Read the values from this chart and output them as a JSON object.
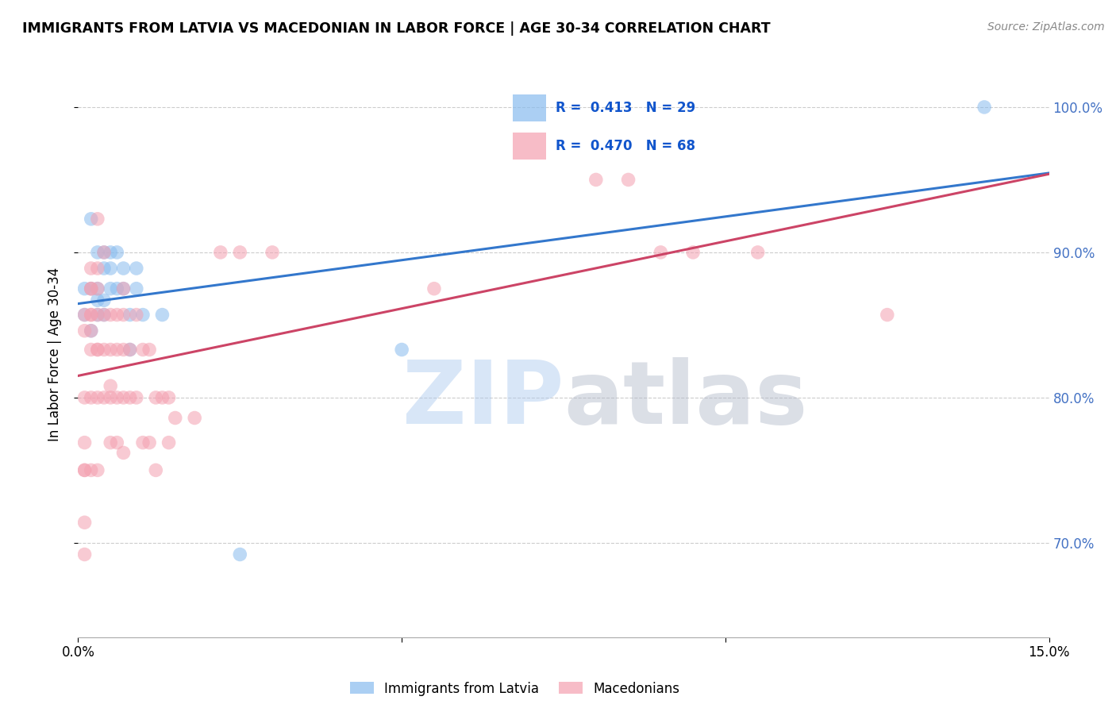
{
  "title": "IMMIGRANTS FROM LATVIA VS MACEDONIAN IN LABOR FORCE | AGE 30-34 CORRELATION CHART",
  "source": "Source: ZipAtlas.com",
  "ylabel": "In Labor Force | Age 30-34",
  "xlim": [
    0.0,
    0.15
  ],
  "ylim": [
    0.635,
    1.025
  ],
  "yticks": [
    0.7,
    0.8,
    0.9,
    1.0
  ],
  "yticklabels": [
    "70.0%",
    "80.0%",
    "90.0%",
    "100.0%"
  ],
  "right_ytick_color": "#4472c4",
  "legend_R_latvia": "0.413",
  "legend_N_latvia": "29",
  "legend_R_macedonian": "0.470",
  "legend_N_macedonian": "68",
  "latvia_color": "#88bbee",
  "macedonian_color": "#f4a0b0",
  "trend_latvia_color": "#3377cc",
  "trend_macedonian_color": "#cc4466",
  "latvia_x": [
    0.001,
    0.001,
    0.002,
    0.002,
    0.002,
    0.003,
    0.003,
    0.003,
    0.003,
    0.004,
    0.004,
    0.004,
    0.004,
    0.005,
    0.005,
    0.005,
    0.006,
    0.006,
    0.007,
    0.007,
    0.008,
    0.008,
    0.009,
    0.009,
    0.01,
    0.013,
    0.025,
    0.05,
    0.14
  ],
  "latvia_y": [
    0.857,
    0.875,
    0.846,
    0.923,
    0.875,
    0.867,
    0.857,
    0.875,
    0.9,
    0.867,
    0.857,
    0.889,
    0.9,
    0.875,
    0.889,
    0.9,
    0.875,
    0.9,
    0.875,
    0.889,
    0.833,
    0.857,
    0.875,
    0.889,
    0.857,
    0.857,
    0.692,
    0.833,
    1.0
  ],
  "macedonian_x": [
    0.001,
    0.001,
    0.001,
    0.001,
    0.001,
    0.001,
    0.001,
    0.001,
    0.002,
    0.002,
    0.002,
    0.002,
    0.002,
    0.002,
    0.002,
    0.002,
    0.002,
    0.003,
    0.003,
    0.003,
    0.003,
    0.003,
    0.003,
    0.003,
    0.003,
    0.004,
    0.004,
    0.004,
    0.004,
    0.005,
    0.005,
    0.005,
    0.005,
    0.005,
    0.006,
    0.006,
    0.006,
    0.006,
    0.007,
    0.007,
    0.007,
    0.007,
    0.007,
    0.008,
    0.008,
    0.009,
    0.009,
    0.01,
    0.01,
    0.011,
    0.011,
    0.012,
    0.012,
    0.013,
    0.014,
    0.014,
    0.015,
    0.018,
    0.022,
    0.025,
    0.03,
    0.055,
    0.08,
    0.085,
    0.09,
    0.095,
    0.105,
    0.125
  ],
  "macedonian_y": [
    0.857,
    0.846,
    0.8,
    0.769,
    0.75,
    0.75,
    0.714,
    0.692,
    0.889,
    0.875,
    0.875,
    0.857,
    0.857,
    0.846,
    0.833,
    0.8,
    0.75,
    0.923,
    0.889,
    0.875,
    0.857,
    0.833,
    0.833,
    0.8,
    0.75,
    0.9,
    0.857,
    0.833,
    0.8,
    0.857,
    0.833,
    0.808,
    0.8,
    0.769,
    0.857,
    0.833,
    0.8,
    0.769,
    0.875,
    0.857,
    0.833,
    0.8,
    0.762,
    0.833,
    0.8,
    0.857,
    0.8,
    0.833,
    0.769,
    0.833,
    0.769,
    0.8,
    0.75,
    0.8,
    0.8,
    0.769,
    0.786,
    0.786,
    0.9,
    0.9,
    0.9,
    0.875,
    0.95,
    0.95,
    0.9,
    0.9,
    0.9,
    0.857
  ]
}
